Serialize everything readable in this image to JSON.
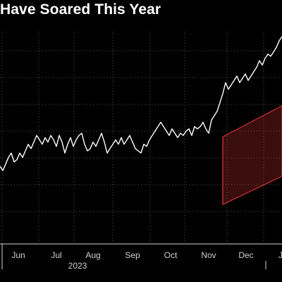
{
  "header": {
    "title": "Have Soared This Year"
  },
  "chart_data": {
    "type": "line",
    "title": "Have Soared This Year",
    "xlabel": "",
    "ylabel": "",
    "grid": true,
    "legend": "none",
    "x_tick_labels": [
      "Jun",
      "Jul",
      "Aug",
      "Sep",
      "Oct",
      "Nov",
      "Dec",
      "J"
    ],
    "x_secondary_label": "2023",
    "xlim": [
      0,
      100
    ],
    "ylim": [
      0,
      10
    ],
    "series": [
      {
        "x": [
          0,
          1,
          2,
          3,
          4,
          5,
          6,
          7,
          8,
          9,
          10,
          11,
          12,
          13,
          14,
          15,
          16,
          17,
          18,
          19,
          20,
          21,
          22,
          23,
          24,
          25,
          26,
          27,
          28,
          29,
          30,
          31,
          32,
          33,
          34,
          35,
          36,
          37,
          38,
          39,
          40,
          41,
          42,
          43,
          44,
          45,
          46,
          47,
          48,
          49,
          50,
          51,
          52,
          53,
          54,
          55,
          56,
          57,
          58,
          59,
          60,
          61,
          62,
          63,
          64,
          65,
          66,
          67,
          68,
          69,
          70,
          71,
          72,
          73,
          74,
          75,
          76,
          77,
          78,
          79,
          80,
          81,
          82,
          83,
          84,
          85,
          86,
          87,
          88,
          89,
          90,
          91,
          92,
          93,
          94,
          95,
          96,
          97,
          98,
          99,
          100
        ],
        "y": [
          3.5,
          3.3,
          3.6,
          3.9,
          4.1,
          3.7,
          3.8,
          4.1,
          3.9,
          4.2,
          4.5,
          4.3,
          4.6,
          4.9,
          4.7,
          4.5,
          4.8,
          4.6,
          4.9,
          4.7,
          4.4,
          4.9,
          4.6,
          4.1,
          4.5,
          4.8,
          4.4,
          4.7,
          4.9,
          5.0,
          4.5,
          4.2,
          4.3,
          4.6,
          4.4,
          4.7,
          5.0,
          4.6,
          4.1,
          4.3,
          4.5,
          4.7,
          4.5,
          4.8,
          4.5,
          4.7,
          4.9,
          4.6,
          4.3,
          4.2,
          4.1,
          4.5,
          4.4,
          4.7,
          4.9,
          5.1,
          5.3,
          5.5,
          5.3,
          5.1,
          4.9,
          5.2,
          5.0,
          4.8,
          5.0,
          4.9,
          5.1,
          5.2,
          4.9,
          5.3,
          5.2,
          5.3,
          5.5,
          5.2,
          5.0,
          5.6,
          5.8,
          6.0,
          6.4,
          6.8,
          7.3,
          7.0,
          7.2,
          7.4,
          7.6,
          7.3,
          7.5,
          7.7,
          7.4,
          7.6,
          7.8,
          8.0,
          8.3,
          8.1,
          8.4,
          8.6,
          8.5,
          8.7,
          8.9,
          9.2,
          9.4
        ],
        "color": "#ffffff"
      }
    ],
    "annotations": [
      {
        "type": "highlight-band",
        "x_range": [
          79,
          100
        ],
        "color": "#d0312d"
      }
    ]
  }
}
